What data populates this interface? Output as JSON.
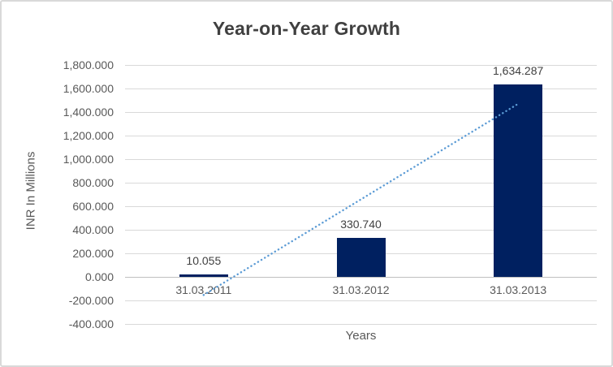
{
  "window": {
    "background": "#FFFFFF",
    "border_color": "#D9D9D9"
  },
  "styles": {
    "title_color": "#404040",
    "axis_text_color": "#595959",
    "gridline_color": "#D9D9D9",
    "axis_line_color": "#BFBFBF"
  },
  "chart_data": {
    "type": "bar",
    "title": "Year-on-Year Growth",
    "xlabel": "Years",
    "ylabel": "INR In Millions",
    "categories": [
      "31.03.2011",
      "31.03.2012",
      "31.03.2013"
    ],
    "values": [
      10.055,
      330.74,
      1634.287
    ],
    "data_labels": [
      "10.055",
      "330.740",
      "1,634.287"
    ],
    "bar_color": "#002060",
    "ylim": [
      -400,
      1800
    ],
    "ytick_step": 200,
    "yticks": [
      "1,800.000",
      "1,600.000",
      "1,400.000",
      "1,200.000",
      "1,000.000",
      "800.000",
      "600.000",
      "400.000",
      "200.000",
      "0.000",
      "-200.000",
      "-400.000"
    ],
    "grid": true,
    "legend": "none",
    "trendline": {
      "type": "linear",
      "style": "dotted",
      "color": "#5B9BD5",
      "start_value": -154,
      "end_value": 1470
    }
  }
}
